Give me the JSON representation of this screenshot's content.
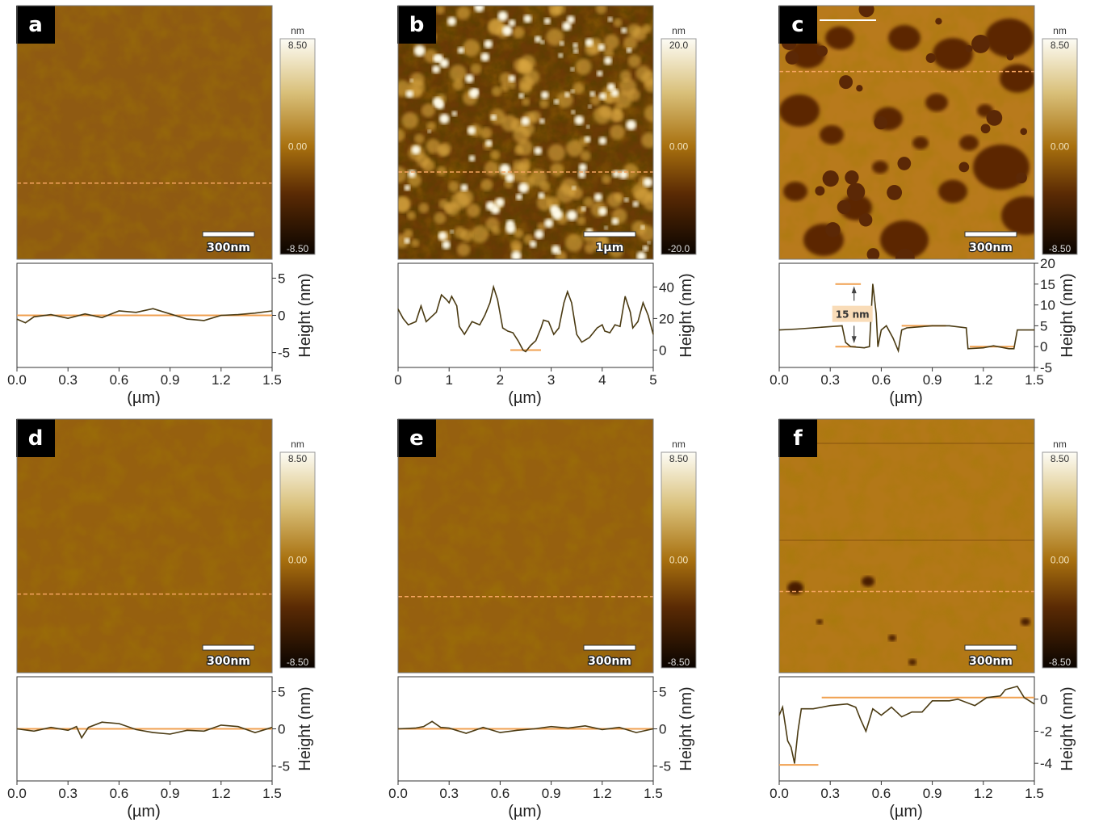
{
  "colors": {
    "profile_line": "#4a3a12",
    "reference_line": "#f0a050",
    "dashed_line": "#f4a460",
    "annotation_bg": "#f9dcb8"
  },
  "chart_data": [
    {
      "panel": "a",
      "type": "line",
      "image": {
        "style": "smooth",
        "scalebar": "300nm",
        "colorbar": {
          "unit": "nm",
          "max": "8.50",
          "mid": "0.00",
          "min": "-8.50"
        }
      },
      "xlabel": "(µm)",
      "ylabel": "Height (nm)",
      "xlim": [
        0,
        1.5
      ],
      "ylim": [
        -7,
        7
      ],
      "xticks": [
        "0.0",
        "0.3",
        "0.6",
        "0.9",
        "1.2",
        "1.5"
      ],
      "yticks": [
        5,
        0,
        -5
      ],
      "x": [
        0,
        0.05,
        0.1,
        0.2,
        0.3,
        0.4,
        0.5,
        0.6,
        0.7,
        0.8,
        0.9,
        1.0,
        1.1,
        1.2,
        1.3,
        1.4,
        1.5
      ],
      "y": [
        -0.5,
        -1,
        -0.2,
        0.1,
        -0.4,
        0.2,
        -0.3,
        0.6,
        0.4,
        0.9,
        0.2,
        -0.5,
        -0.7,
        0,
        0.1,
        0.3,
        0.6
      ],
      "references": [
        {
          "x": [
            0,
            1.5
          ],
          "y": 0
        }
      ],
      "annotation": ""
    },
    {
      "panel": "b",
      "type": "line",
      "image": {
        "style": "grains",
        "scalebar": "1µm",
        "colorbar": {
          "unit": "nm",
          "max": "20.0",
          "mid": "0.00",
          "min": "-20.0"
        }
      },
      "xlabel": "(µm)",
      "ylabel": "Height (nm)",
      "xlim": [
        0,
        5
      ],
      "ylim": [
        -11,
        55
      ],
      "xticks": [
        "0",
        "1",
        "2",
        "3",
        "4",
        "5"
      ],
      "yticks": [
        40,
        20,
        0
      ],
      "x": [
        0,
        0.1,
        0.2,
        0.35,
        0.45,
        0.55,
        0.75,
        0.85,
        0.95,
        1.0,
        1.05,
        1.15,
        1.2,
        1.3,
        1.45,
        1.6,
        1.7,
        1.8,
        1.87,
        1.95,
        2.05,
        2.15,
        2.25,
        2.35,
        2.45,
        2.5,
        2.6,
        2.7,
        2.8,
        2.85,
        2.95,
        3.05,
        3.15,
        3.25,
        3.32,
        3.4,
        3.5,
        3.6,
        3.75,
        3.9,
        4.0,
        4.05,
        4.15,
        4.25,
        4.35,
        4.45,
        4.55,
        4.6,
        4.7,
        4.8,
        4.9,
        5.0
      ],
      "y": [
        26,
        20,
        16,
        18,
        28,
        18,
        24,
        35,
        32,
        30,
        34,
        28,
        15,
        10,
        18,
        16,
        22,
        30,
        40,
        32,
        14,
        12,
        11,
        6,
        0,
        -1,
        3,
        6,
        14,
        19,
        18,
        10,
        14,
        30,
        37,
        30,
        10,
        5,
        8,
        14,
        16,
        12,
        11,
        16,
        15,
        34,
        24,
        14,
        18,
        30,
        22,
        10
      ],
      "references": [
        {
          "x": [
            2.2,
            2.8
          ],
          "y": 0
        }
      ],
      "annotation": ""
    },
    {
      "panel": "c",
      "type": "line",
      "image": {
        "style": "islands",
        "scalebar": "300nm",
        "colorbar": {
          "unit": "nm",
          "max": "8.50",
          "mid": "0.00",
          "min": "-8.50"
        }
      },
      "xlabel": "(µm)",
      "ylabel": "Height (nm)",
      "xlim": [
        0,
        1.5
      ],
      "ylim": [
        -5,
        20
      ],
      "xticks": [
        "0.0",
        "0.3",
        "0.6",
        "0.9",
        "1.2",
        "1.5"
      ],
      "yticks": [
        20,
        15,
        10,
        5,
        0,
        -5
      ],
      "x": [
        0,
        0.1,
        0.2,
        0.3,
        0.37,
        0.39,
        0.42,
        0.5,
        0.53,
        0.55,
        0.57,
        0.58,
        0.6,
        0.63,
        0.67,
        0.7,
        0.72,
        0.75,
        0.9,
        1.0,
        1.1,
        1.11,
        1.2,
        1.26,
        1.35,
        1.38,
        1.4,
        1.5
      ],
      "y": [
        4,
        4.2,
        4.5,
        4.8,
        5,
        1,
        0,
        -0.3,
        0,
        15,
        8,
        0,
        4,
        5,
        2,
        -1,
        4,
        4.5,
        5,
        5,
        4.5,
        -0.5,
        -0.3,
        0.2,
        -0.5,
        -0.5,
        4,
        4
      ],
      "references": [
        {
          "x": [
            0.33,
            0.48
          ],
          "y": 15
        },
        {
          "x": [
            0.33,
            0.45
          ],
          "y": 0
        },
        {
          "x": [
            0.72,
            0.98
          ],
          "y": 5
        },
        {
          "x": [
            1.12,
            1.38
          ],
          "y": 0
        }
      ],
      "annotation": "15 nm"
    },
    {
      "panel": "d",
      "type": "line",
      "image": {
        "style": "smooth",
        "scalebar": "300nm",
        "colorbar": {
          "unit": "nm",
          "max": "8.50",
          "mid": "0.00",
          "min": "-8.50"
        }
      },
      "xlabel": "(µm)",
      "ylabel": "Height (nm)",
      "xlim": [
        0,
        1.5
      ],
      "ylim": [
        -7,
        7
      ],
      "xticks": [
        "0.0",
        "0.3",
        "0.6",
        "0.9",
        "1.2",
        "1.5"
      ],
      "yticks": [
        5,
        0,
        -5
      ],
      "x": [
        0,
        0.1,
        0.2,
        0.3,
        0.35,
        0.38,
        0.42,
        0.5,
        0.6,
        0.7,
        0.8,
        0.9,
        1.0,
        1.1,
        1.2,
        1.3,
        1.4,
        1.5
      ],
      "y": [
        0,
        -0.3,
        0.2,
        -0.2,
        0.3,
        -1.2,
        0.2,
        0.9,
        0.7,
        -0.1,
        -0.5,
        -0.7,
        -0.2,
        -0.3,
        0.5,
        0.3,
        -0.5,
        0.2
      ],
      "references": [
        {
          "x": [
            0,
            1.5
          ],
          "y": 0
        }
      ],
      "annotation": ""
    },
    {
      "panel": "e",
      "type": "line",
      "image": {
        "style": "smooth",
        "scalebar": "300nm",
        "colorbar": {
          "unit": "nm",
          "max": "8.50",
          "mid": "0.00",
          "min": "-8.50"
        }
      },
      "xlabel": "(µm)",
      "ylabel": "Height (nm)",
      "xlim": [
        0,
        1.5
      ],
      "ylim": [
        -7,
        7
      ],
      "xticks": [
        "0.0",
        "0.3",
        "0.6",
        "0.9",
        "1.2",
        "1.5"
      ],
      "yticks": [
        5,
        0,
        -5
      ],
      "x": [
        0,
        0.1,
        0.15,
        0.2,
        0.25,
        0.3,
        0.4,
        0.5,
        0.6,
        0.7,
        0.8,
        0.9,
        1.0,
        1.1,
        1.2,
        1.3,
        1.4,
        1.5
      ],
      "y": [
        0,
        0.1,
        0.3,
        1,
        0.2,
        0.1,
        -0.6,
        0.2,
        -0.5,
        -0.2,
        0,
        0.3,
        0.1,
        0.4,
        -0.1,
        0.2,
        -0.5,
        0
      ],
      "references": [
        {
          "x": [
            0,
            1.5
          ],
          "y": 0
        }
      ],
      "annotation": ""
    },
    {
      "panel": "f",
      "type": "line",
      "image": {
        "style": "spots",
        "scalebar": "300nm",
        "colorbar": {
          "unit": "nm",
          "max": "8.50",
          "mid": "0.00",
          "min": "-8.50"
        }
      },
      "xlabel": "(µm)",
      "ylabel": "Height (nm)",
      "xlim": [
        0,
        1.5
      ],
      "ylim": [
        -5.1,
        1.4
      ],
      "xticks": [
        "0.0",
        "0.3",
        "0.6",
        "0.9",
        "1.2",
        "1.5"
      ],
      "yticks": [
        0,
        -2,
        -4
      ],
      "x": [
        0,
        0.02,
        0.05,
        0.07,
        0.09,
        0.11,
        0.13,
        0.2,
        0.3,
        0.4,
        0.45,
        0.48,
        0.51,
        0.55,
        0.6,
        0.66,
        0.72,
        0.78,
        0.84,
        0.9,
        1.0,
        1.05,
        1.15,
        1.22,
        1.3,
        1.33,
        1.4,
        1.44,
        1.5
      ],
      "y": [
        -1,
        -0.5,
        -2.6,
        -3,
        -4,
        -2,
        -0.6,
        -0.6,
        -0.4,
        -0.3,
        -0.5,
        -1.3,
        -2,
        -0.6,
        -1,
        -0.5,
        -1.1,
        -0.8,
        -0.8,
        -0.1,
        -0.1,
        0,
        -0.4,
        0.1,
        0.2,
        0.6,
        0.8,
        0.1,
        -0.3
      ],
      "references": [
        {
          "x": [
            0,
            0.23
          ],
          "y": -4.1
        },
        {
          "x": [
            0.25,
            1.5
          ],
          "y": 0.1
        }
      ],
      "annotation": ""
    }
  ]
}
